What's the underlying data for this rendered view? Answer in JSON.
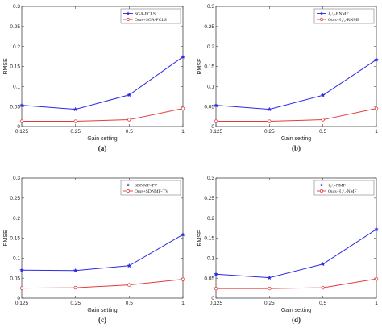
{
  "chart_data": [
    {
      "type": "line",
      "panel_label": "(a)",
      "xlabel": "Gain setting",
      "ylabel": "RMSE",
      "categories": [
        "0.125",
        "0.25",
        "0.5",
        "1"
      ],
      "yticks": [
        "0",
        "0.05",
        "0.1",
        "0.15",
        "0.2",
        "0.25",
        "0.3"
      ],
      "ylim": [
        0,
        0.3
      ],
      "legend": "top-right",
      "series": [
        {
          "name": "SGA-FCLS",
          "color": "#2a2ae6",
          "marker": "star",
          "values": [
            0.053,
            0.043,
            0.079,
            0.174
          ]
        },
        {
          "name": "Ours+SGA-FCLS",
          "color": "#e63a3a",
          "marker": "circle",
          "values": [
            0.013,
            0.013,
            0.017,
            0.045
          ]
        }
      ]
    },
    {
      "type": "line",
      "panel_label": "(b)",
      "xlabel": "Gain setting",
      "ylabel": "RMSE",
      "categories": [
        "0.125",
        "0.25",
        "0.5",
        "1"
      ],
      "yticks": [
        "0",
        "0.05",
        "0.1",
        "0.15",
        "0.2",
        "0.25",
        "0.3"
      ],
      "ylim": [
        0,
        0.3
      ],
      "legend": "top-right",
      "series": [
        {
          "name": "ℓ₁/₂-RNMF",
          "color": "#2a2ae6",
          "marker": "star",
          "values": [
            0.053,
            0.043,
            0.078,
            0.167
          ]
        },
        {
          "name": "Ours+ℓ₁/₂-RNMF",
          "color": "#e63a3a",
          "marker": "circle",
          "values": [
            0.013,
            0.013,
            0.017,
            0.045
          ]
        }
      ]
    },
    {
      "type": "line",
      "panel_label": "(c)",
      "xlabel": "Gain setting",
      "ylabel": "RMSE",
      "categories": [
        "0.125",
        "0.25",
        "0.5",
        "1"
      ],
      "yticks": [
        "0",
        "0.05",
        "0.1",
        "0.15",
        "0.2",
        "0.25",
        "0.3"
      ],
      "ylim": [
        0,
        0.3
      ],
      "legend": "top-right",
      "series": [
        {
          "name": "SDNMF-TV",
          "color": "#2a2ae6",
          "marker": "star",
          "values": [
            0.07,
            0.069,
            0.081,
            0.159
          ]
        },
        {
          "name": "Ours+SDNMF-TV",
          "color": "#e63a3a",
          "marker": "circle",
          "values": [
            0.025,
            0.026,
            0.033,
            0.047
          ]
        }
      ]
    },
    {
      "type": "line",
      "panel_label": "(d)",
      "xlabel": "Gain setting",
      "ylabel": "RMSE",
      "categories": [
        "0.125",
        "0.25",
        "0.5",
        "1"
      ],
      "yticks": [
        "0",
        "0.05",
        "0.1",
        "0.15",
        "0.2",
        "0.25",
        "0.3"
      ],
      "ylim": [
        0,
        0.3
      ],
      "legend": "top-right",
      "series": [
        {
          "name": "ℓ₁/₂-NMF",
          "color": "#2a2ae6",
          "marker": "star",
          "values": [
            0.06,
            0.051,
            0.085,
            0.172
          ]
        },
        {
          "name": "Ours+ℓ₁/₂-NMF",
          "color": "#e63a3a",
          "marker": "circle",
          "values": [
            0.024,
            0.024,
            0.026,
            0.048
          ]
        }
      ]
    }
  ]
}
